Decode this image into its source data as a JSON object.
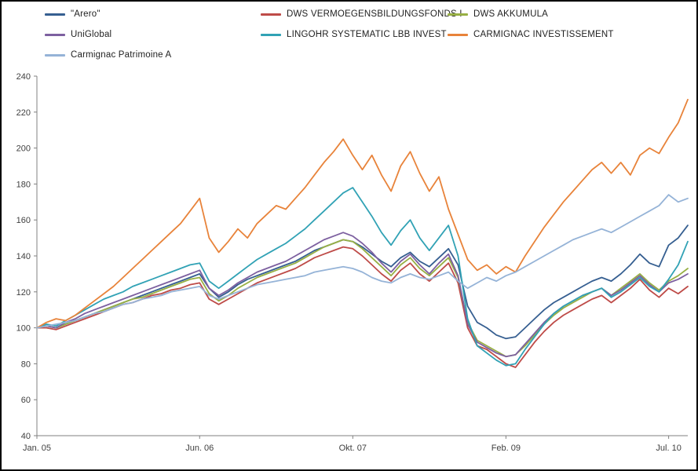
{
  "legend": [
    {
      "key": "arero",
      "label": "\"Arero\"",
      "color": "#365F91"
    },
    {
      "key": "dws-vermoegensbildungsfonds",
      "label": "DWS VERMOEGENSBILDUNGSFONDS I",
      "color": "#BE4B48"
    },
    {
      "key": "dws-akkumula",
      "label": "DWS AKKUMULA",
      "color": "#98B044"
    },
    {
      "key": "uniglobal",
      "label": "UniGlobal",
      "color": "#7D60A0"
    },
    {
      "key": "lingohr-systematic",
      "label": "LINGOHR SYSTEMATIC  LBB INVEST",
      "color": "#31A2B5"
    },
    {
      "key": "carmignac-investissement",
      "label": "CARMIGNAC INVESTISSEMENT",
      "color": "#E8833A"
    },
    {
      "key": "carmignac-patrimoine",
      "label": "Carmignac Patrimoine A",
      "color": "#95B3D7"
    }
  ],
  "chart_data": {
    "type": "line",
    "x_unit": "months since Jan 2005",
    "x_tick_labels": [
      {
        "label": "Jan. 05",
        "month": 0
      },
      {
        "label": "Jun. 06",
        "month": 17
      },
      {
        "label": "Okt. 07",
        "month": 33
      },
      {
        "label": "Feb. 09",
        "month": 49
      },
      {
        "label": "Jul. 10",
        "month": 66
      }
    ],
    "ylim": [
      40,
      240
    ],
    "y_ticks": [
      40,
      60,
      80,
      100,
      120,
      140,
      160,
      180,
      200,
      220,
      240
    ],
    "grid": false,
    "legend_position": "top",
    "series": [
      {
        "name": "\"Arero\"",
        "color": "#365F91",
        "values": [
          100,
          101,
          100,
          102,
          104,
          106,
          108,
          110,
          112,
          114,
          116,
          118,
          120,
          122,
          124,
          126,
          128,
          130,
          122,
          117,
          120,
          124,
          127,
          129,
          131,
          133,
          135,
          137,
          140,
          143,
          145,
          147,
          149,
          148,
          145,
          141,
          137,
          134,
          139,
          142,
          137,
          134,
          139,
          144,
          135,
          112,
          103,
          100,
          96,
          94,
          95,
          100,
          105,
          110,
          114,
          117,
          120,
          123,
          126,
          128,
          126,
          130,
          135,
          141,
          136,
          134,
          146,
          150,
          157
        ]
      },
      {
        "name": "DWS VERMOEGENSBILDUNGSFONDS I",
        "color": "#BE4B48",
        "values": [
          100,
          100,
          99,
          101,
          103,
          105,
          107,
          109,
          111,
          113,
          114,
          116,
          118,
          119,
          121,
          122,
          124,
          125,
          116,
          113,
          116,
          119,
          122,
          125,
          127,
          129,
          131,
          133,
          136,
          139,
          141,
          143,
          145,
          144,
          140,
          135,
          130,
          126,
          132,
          136,
          130,
          126,
          131,
          136,
          125,
          100,
          90,
          88,
          84,
          80,
          78,
          85,
          92,
          98,
          103,
          107,
          110,
          113,
          116,
          118,
          114,
          118,
          122,
          127,
          121,
          117,
          122,
          119,
          123
        ]
      },
      {
        "name": "DWS AKKUMULA",
        "color": "#98B044",
        "values": [
          100,
          101,
          100,
          102,
          104,
          106,
          108,
          110,
          112,
          114,
          116,
          117,
          119,
          121,
          123,
          125,
          127,
          128,
          119,
          115,
          118,
          122,
          125,
          128,
          130,
          132,
          134,
          136,
          139,
          142,
          145,
          147,
          149,
          148,
          144,
          139,
          134,
          129,
          135,
          139,
          133,
          129,
          134,
          139,
          128,
          103,
          93,
          90,
          87,
          84,
          85,
          90,
          96,
          102,
          107,
          111,
          114,
          117,
          120,
          122,
          118,
          122,
          126,
          130,
          125,
          121,
          126,
          129,
          133
        ]
      },
      {
        "name": "UniGlobal",
        "color": "#7D60A0",
        "values": [
          100,
          101,
          100,
          103,
          105,
          108,
          110,
          112,
          114,
          116,
          118,
          120,
          122,
          124,
          126,
          128,
          130,
          132,
          122,
          118,
          121,
          125,
          128,
          131,
          133,
          135,
          137,
          140,
          143,
          146,
          149,
          151,
          153,
          151,
          147,
          142,
          136,
          131,
          137,
          141,
          135,
          130,
          136,
          141,
          129,
          102,
          92,
          89,
          86,
          84,
          85,
          91,
          97,
          103,
          108,
          112,
          115,
          118,
          120,
          122,
          118,
          121,
          125,
          129,
          124,
          120,
          125,
          127,
          130
        ]
      },
      {
        "name": "LINGOHR SYSTEMATIC  LBB INVEST",
        "color": "#31A2B5",
        "values": [
          100,
          102,
          101,
          104,
          107,
          110,
          113,
          116,
          118,
          120,
          123,
          125,
          127,
          129,
          131,
          133,
          135,
          136,
          126,
          122,
          126,
          130,
          134,
          138,
          141,
          144,
          147,
          151,
          155,
          160,
          165,
          170,
          175,
          178,
          170,
          162,
          153,
          146,
          154,
          160,
          150,
          143,
          150,
          157,
          140,
          105,
          90,
          86,
          82,
          79,
          80,
          88,
          95,
          102,
          108,
          112,
          115,
          118,
          120,
          122,
          117,
          120,
          124,
          128,
          123,
          120,
          127,
          135,
          148
        ]
      },
      {
        "name": "CARMIGNAC INVESTISSEMENT",
        "color": "#E8833A",
        "values": [
          100,
          103,
          105,
          104,
          107,
          111,
          115,
          119,
          123,
          128,
          133,
          138,
          143,
          148,
          153,
          158,
          165,
          172,
          150,
          142,
          148,
          155,
          150,
          158,
          163,
          168,
          166,
          172,
          178,
          185,
          192,
          198,
          205,
          196,
          188,
          196,
          185,
          176,
          190,
          198,
          186,
          176,
          184,
          166,
          152,
          138,
          132,
          135,
          130,
          134,
          131,
          140,
          148,
          156,
          163,
          170,
          176,
          182,
          188,
          192,
          186,
          192,
          185,
          196,
          200,
          197,
          206,
          214,
          227
        ]
      },
      {
        "name": "Carmignac Patrimoine A",
        "color": "#95B3D7",
        "values": [
          100,
          101,
          102,
          103,
          104,
          106,
          108,
          109,
          111,
          113,
          114,
          116,
          117,
          118,
          120,
          121,
          122,
          123,
          118,
          116,
          118,
          120,
          122,
          124,
          125,
          126,
          127,
          128,
          129,
          131,
          132,
          133,
          134,
          133,
          131,
          128,
          126,
          125,
          128,
          130,
          128,
          127,
          129,
          131,
          126,
          122,
          125,
          128,
          126,
          129,
          131,
          134,
          137,
          140,
          143,
          146,
          149,
          151,
          153,
          155,
          153,
          156,
          159,
          162,
          165,
          168,
          174,
          170,
          172
        ]
      }
    ]
  }
}
